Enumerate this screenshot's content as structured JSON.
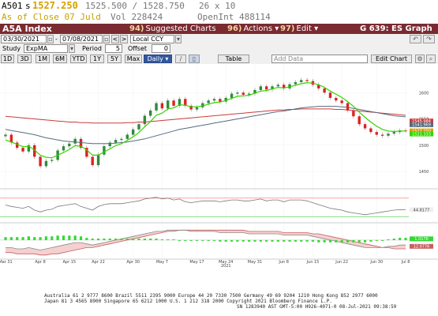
{
  "quote": {
    "ticker": "A501",
    "last_prefix": "s",
    "last_price": "1527.250",
    "bid_ask": "1525.500 / 1528.750",
    "size": "26 x 10",
    "as_of": "As of Close 07 Juld",
    "volume": "Vol  228424",
    "open_interest": "OpenInt  488114"
  },
  "title_bar": {
    "index_name": "A5A Index",
    "suggested_num": "94)",
    "suggested_label": "Suggested Charts",
    "actions_num": "96)",
    "actions_label": "Actions",
    "actions_arrow": "▾",
    "edit_num": "97)",
    "edit_label": "Edit",
    "edit_arrow": "▾",
    "graph_id": "G 639: ES Graph"
  },
  "controls": {
    "date_start": "03/30/2021",
    "date_end": "07/08/2021",
    "dash": "-",
    "nav_prev": "<",
    "nav_next": ">",
    "currency": "Local CCY",
    "study_label": "Study",
    "study_value": "ExpMA",
    "period_label": "Period",
    "period_value": "5",
    "offset_label": "Offset",
    "offset_value": "0",
    "range_buttons": [
      "1D",
      "3D",
      "1M",
      "6M",
      "YTD",
      "1Y",
      "5Y",
      "Max"
    ],
    "frequency": "Daily ▾",
    "table_label": "Table",
    "add_data_placeholder": "Add Data",
    "edit_chart_label": "Edit Chart"
  },
  "chart_data": [
    {
      "type": "line",
      "x": [
        "2021-03-31",
        "2021-04-01",
        "2021-04-05",
        "2021-04-06",
        "2021-04-07",
        "2021-04-08",
        "2021-04-09",
        "2021-04-12",
        "2021-04-13",
        "2021-04-14",
        "2021-04-15",
        "2021-04-16",
        "2021-04-19",
        "2021-04-20",
        "2021-04-21",
        "2021-04-22",
        "2021-04-23",
        "2021-04-26",
        "2021-04-27",
        "2021-04-28",
        "2021-04-29",
        "2021-04-30",
        "2021-05-03",
        "2021-05-04",
        "2021-05-05",
        "2021-05-06",
        "2021-05-07",
        "2021-05-10",
        "2021-05-11",
        "2021-05-12",
        "2021-05-13",
        "2021-05-14",
        "2021-05-17",
        "2021-05-18",
        "2021-05-19",
        "2021-05-20",
        "2021-05-21",
        "2021-05-24",
        "2021-05-25",
        "2021-05-26",
        "2021-05-27",
        "2021-05-28",
        "2021-05-31",
        "2021-06-01",
        "2021-06-02",
        "2021-06-03",
        "2021-06-04",
        "2021-06-07",
        "2021-06-08",
        "2021-06-09",
        "2021-06-10",
        "2021-06-11",
        "2021-06-14",
        "2021-06-15",
        "2021-06-16",
        "2021-06-17",
        "2021-06-18",
        "2021-06-21",
        "2021-06-22",
        "2021-06-23",
        "2021-06-24",
        "2021-06-25",
        "2021-06-28",
        "2021-06-29",
        "2021-06-30",
        "2021-07-01",
        "2021-07-02",
        "2021-07-05",
        "2021-07-06",
        "2021-07-07"
      ],
      "series": [
        {
          "values": [
            1520,
            1505,
            1495,
            1488,
            1500,
            1478,
            1460,
            1470,
            1472,
            1490,
            1498,
            1503,
            1512,
            1495,
            1478,
            1462,
            1482,
            1498,
            1505,
            1510,
            1512,
            1520,
            1530,
            1540,
            1556,
            1566,
            1580,
            1570,
            1585,
            1575,
            1588,
            1575,
            1568,
            1572,
            1580,
            1585,
            1588,
            1583,
            1590,
            1598,
            1600,
            1596,
            1598,
            1605,
            1612,
            1606,
            1612,
            1615,
            1608,
            1616,
            1620,
            1624,
            1622,
            1615,
            1608,
            1600,
            1590,
            1585,
            1580,
            1566,
            1555,
            1540,
            1532,
            1525,
            1520,
            1518,
            1522,
            1525,
            1528,
            1527.25
          ]
        },
        {
          "values": [
            1510,
            1506,
            1502,
            1497,
            1498,
            1491,
            1481,
            1477,
            1476,
            1481,
            1486,
            1492,
            1499,
            1498,
            1491,
            1481,
            1481,
            1487,
            1493,
            1499,
            1503,
            1509,
            1516,
            1524,
            1535,
            1545,
            1557,
            1561,
            1569,
            1571,
            1577,
            1576,
            1573,
            1573,
            1575,
            1578,
            1581,
            1582,
            1585,
            1589,
            1593,
            1594,
            1595,
            1599,
            1603,
            1604,
            1607,
            1610,
            1609,
            1611,
            1614,
            1617,
            1619,
            1618,
            1615,
            1610,
            1603,
            1597,
            1591,
            1583,
            1574,
            1563,
            1553,
            1544,
            1536,
            1530,
            1527,
            1526,
            1527,
            1527
          ]
        },
        {
          "values": [
            1530,
            1528,
            1526,
            1524,
            1522,
            1520,
            1517,
            1514,
            1512,
            1510,
            1508,
            1507,
            1506,
            1505,
            1504,
            1503,
            1503,
            1503,
            1503,
            1504,
            1505,
            1506,
            1508,
            1510,
            1512,
            1515,
            1518,
            1521,
            1524,
            1527,
            1530,
            1532,
            1534,
            1536,
            1538,
            1540,
            1542,
            1544,
            1546,
            1548,
            1550,
            1552,
            1554,
            1556,
            1558,
            1560,
            1562,
            1564,
            1565,
            1567,
            1569,
            1571,
            1572,
            1573,
            1574,
            1574,
            1574,
            1574,
            1573,
            1572,
            1570,
            1568,
            1566,
            1564,
            1562,
            1560,
            1558,
            1556,
            1555,
            1554
          ]
        },
        {
          "values": [
            1555,
            1554,
            1553,
            1552,
            1551,
            1550,
            1549,
            1548,
            1547,
            1546,
            1545,
            1544,
            1544,
            1543,
            1543,
            1542,
            1542,
            1542,
            1542,
            1542,
            1542,
            1543,
            1543,
            1544,
            1544,
            1545,
            1546,
            1547,
            1548,
            1549,
            1550,
            1551,
            1552,
            1553,
            1554,
            1555,
            1556,
            1557,
            1558,
            1559,
            1560,
            1561,
            1562,
            1563,
            1564,
            1565,
            1566,
            1567,
            1567,
            1568,
            1568,
            1569,
            1569,
            1569,
            1569,
            1569,
            1569,
            1568,
            1568,
            1567,
            1566,
            1565,
            1564,
            1563,
            1562,
            1561,
            1560,
            1559,
            1558,
            1557
          ]
        }
      ],
      "y_ticks": [
        "1600",
        "1550",
        "1500",
        "1450"
      ],
      "x_tick_labels": [
        "Mar 31",
        "Apr 8",
        "Apr 15",
        "Apr 22",
        "Apr 30",
        "May 7",
        "May 17",
        "May 24\n2021",
        "May 31",
        "Jun 8",
        "Jun 15",
        "Jun 22",
        "Jun 30",
        "Jul 8"
      ],
      "price_labels": [
        "1545.984",
        "1541.969",
        "1527.250",
        "1521.333"
      ],
      "ylim": [
        1420,
        1650
      ],
      "grid": true
    },
    {
      "type": "line",
      "series": [
        {
          "values": [
            55,
            52,
            50,
            48,
            52,
            44,
            40,
            44,
            46,
            52,
            54,
            56,
            58,
            52,
            48,
            44,
            52,
            56,
            58,
            58,
            58,
            60,
            62,
            64,
            68,
            70,
            72,
            68,
            70,
            66,
            68,
            62,
            60,
            62,
            64,
            64,
            64,
            62,
            64,
            66,
            66,
            64,
            64,
            66,
            68,
            64,
            66,
            66,
            62,
            66,
            66,
            66,
            64,
            60,
            56,
            52,
            48,
            46,
            44,
            40,
            38,
            36,
            34,
            36,
            38,
            40,
            42,
            44,
            45,
            44.8177
          ]
        }
      ],
      "value_label": "44.8177",
      "ylim": [
        20,
        85
      ]
    },
    {
      "type": "bar",
      "series": [
        {
          "values": [
            -6,
            -6,
            -7,
            -7,
            -6,
            -7,
            -8,
            -7,
            -6,
            -5,
            -4,
            -3,
            -2,
            -2,
            -3,
            -4,
            -3,
            -2,
            -1,
            0,
            1,
            2,
            3,
            4,
            5,
            6,
            7,
            7,
            8,
            8,
            8,
            8,
            7,
            7,
            7,
            7,
            7,
            6,
            6,
            6,
            6,
            6,
            5,
            5,
            5,
            5,
            5,
            5,
            4,
            4,
            4,
            4,
            4,
            3,
            2,
            1,
            0,
            -1,
            -2,
            -3,
            -4,
            -5,
            -6,
            -6,
            -6,
            -6,
            -5,
            -5,
            -4,
            -4
          ]
        },
        {
          "values": [
            -10,
            -10,
            -11,
            -11,
            -11,
            -11,
            -12,
            -12,
            -11,
            -11,
            -10,
            -9,
            -8,
            -7,
            -6,
            -6,
            -5,
            -4,
            -3,
            -2,
            -1,
            0,
            1,
            2,
            3,
            4,
            5,
            6,
            7,
            7,
            8,
            8,
            8,
            8,
            8,
            8,
            8,
            8,
            8,
            8,
            8,
            8,
            7,
            7,
            7,
            7,
            7,
            7,
            6,
            6,
            6,
            6,
            6,
            5,
            5,
            4,
            3,
            2,
            1,
            0,
            -1,
            -2,
            -3,
            -4,
            -5,
            -6,
            -6,
            -7,
            -7,
            -7
          ]
        }
      ],
      "value_labels": [
        "1.0176",
        "12.0776"
      ],
      "ylim": [
        -14,
        12
      ]
    }
  ],
  "footer": {
    "line1": "Australia 61 2 9777 8600 Brazil 5511 2395 9000 Europe 44 20 7330 7500 Germany 49 69 9204 1210 Hong Kong 852 2977 6000",
    "line2": "Japan 81 3 4565 8900        Singapore 65 6212 1000       U.S. 1 212 318 2000          Copyright 2021 Bloomberg Finance L.P.",
    "line3": "SN 1283940 AST  GMT-5:00 H926-4071-0 08-Jul-2021 09:38:59"
  },
  "colors": {
    "title_bar": "#7a2a30",
    "up_candle": "#2e8b3a",
    "down_candle": "#e02020",
    "ema_fast": "#34d400",
    "ema_mid": "#556b80",
    "ema_slow": "#cc3b3b",
    "last_price": "#d4a000",
    "button_selected": "#31579e"
  }
}
